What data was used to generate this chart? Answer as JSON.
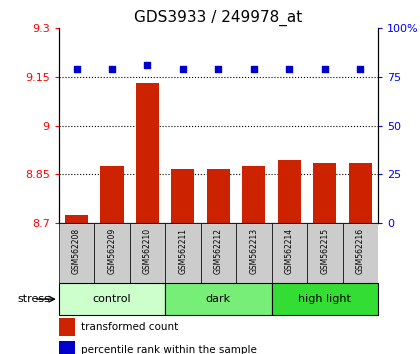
{
  "title": "GDS3933 / 249978_at",
  "samples": [
    "GSM562208",
    "GSM562209",
    "GSM562210",
    "GSM562211",
    "GSM562212",
    "GSM562213",
    "GSM562214",
    "GSM562215",
    "GSM562216"
  ],
  "bar_values": [
    8.725,
    8.875,
    9.13,
    8.865,
    8.868,
    8.875,
    8.895,
    8.885,
    8.885
  ],
  "dot_values": [
    79,
    79,
    81,
    79,
    79,
    79,
    79,
    79,
    79
  ],
  "groups": [
    {
      "label": "control",
      "start": 0,
      "end": 3,
      "color": "#ccffcc"
    },
    {
      "label": "dark",
      "start": 3,
      "end": 6,
      "color": "#77ee77"
    },
    {
      "label": "high light",
      "start": 6,
      "end": 9,
      "color": "#33dd33"
    }
  ],
  "ylim_left": [
    8.7,
    9.3
  ],
  "ylim_right": [
    0,
    100
  ],
  "yticks_left": [
    8.7,
    8.85,
    9.0,
    9.15,
    9.3
  ],
  "ytick_labels_left": [
    "8.7",
    "8.85",
    "9",
    "9.15",
    "9.3"
  ],
  "yticks_right": [
    0,
    25,
    50,
    75,
    100
  ],
  "ytick_labels_right": [
    "0",
    "25",
    "50",
    "75",
    "100%"
  ],
  "grid_lines": [
    8.85,
    9.0,
    9.15
  ],
  "bar_color": "#cc2200",
  "dot_color": "#0000cc",
  "bar_bottom": 8.7,
  "stress_label": "stress",
  "legend_bar_label": "transformed count",
  "legend_dot_label": "percentile rank within the sample",
  "sample_box_color": "#cccccc",
  "title_fontsize": 11,
  "tick_fontsize": 8,
  "label_fontsize": 8,
  "group_fontsize": 8,
  "stress_fontsize": 8
}
